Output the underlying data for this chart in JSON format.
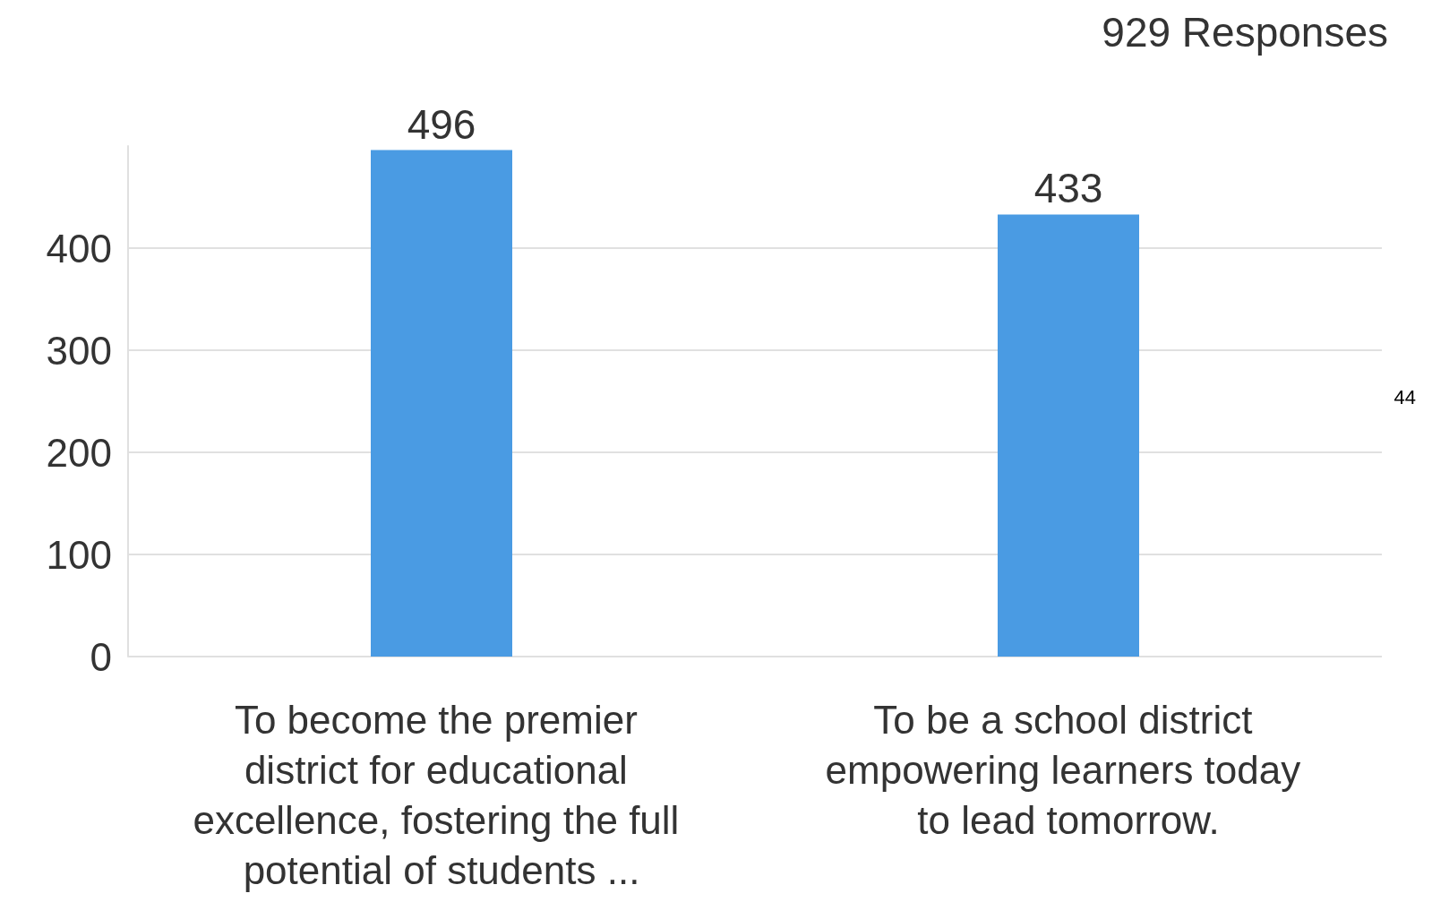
{
  "chart_data": {
    "type": "bar",
    "title": "929 Responses",
    "categories": [
      "To become the premier district for educational excellence, fostering the full potential of students ...",
      "To be a school district empowering learners today to lead tomorrow."
    ],
    "values": [
      496,
      433
    ],
    "color": "#4a9be3",
    "data_labels": true,
    "ylim": [
      0,
      500
    ],
    "yticks": [
      0,
      100,
      200,
      300,
      400
    ],
    "grid": "y",
    "annotations": [
      "44"
    ]
  }
}
